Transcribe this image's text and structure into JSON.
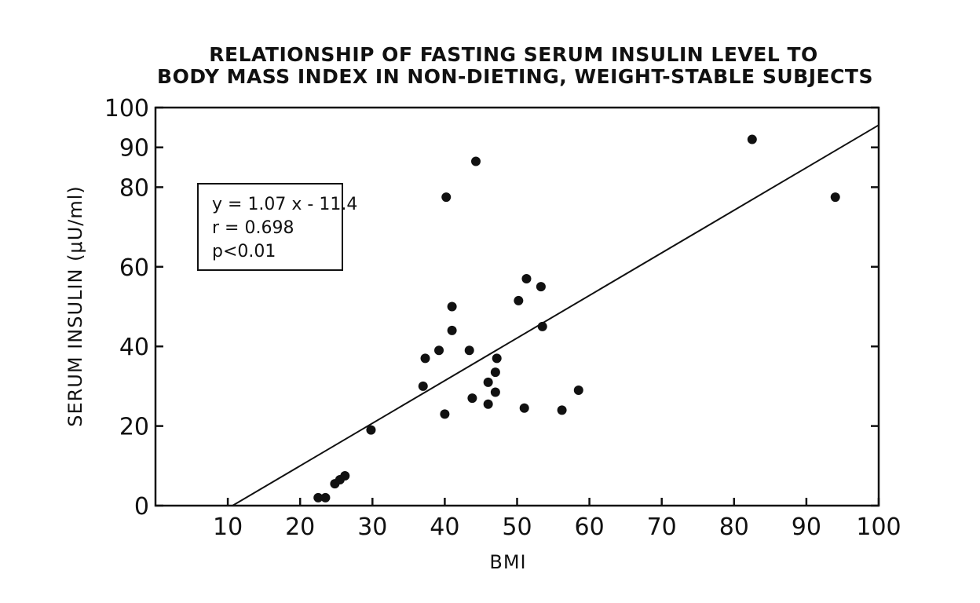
{
  "chart_data": {
    "type": "scatter",
    "title_lines": [
      "RELATIONSHIP OF FASTING SERUM INSULIN LEVEL TO",
      "BODY MASS INDEX IN NON-DIETING, WEIGHT-STABLE SUBJECTS"
    ],
    "xlabel": "BMI",
    "ylabel": "SERUM INSULIN (μU/ml)",
    "xlim": [
      0,
      100
    ],
    "ylim": [
      0,
      100
    ],
    "x_ticks": [
      10,
      20,
      30,
      40,
      50,
      60,
      70,
      80,
      90,
      100
    ],
    "y_ticks": [
      0,
      20,
      40,
      60,
      80,
      90,
      100
    ],
    "grid": false,
    "points": [
      {
        "x": 22.5,
        "y": 2
      },
      {
        "x": 23.5,
        "y": 2
      },
      {
        "x": 24.8,
        "y": 5.5
      },
      {
        "x": 25.5,
        "y": 6.5
      },
      {
        "x": 26.2,
        "y": 7.5
      },
      {
        "x": 29.8,
        "y": 19
      },
      {
        "x": 37.0,
        "y": 30
      },
      {
        "x": 37.3,
        "y": 37
      },
      {
        "x": 39.2,
        "y": 39
      },
      {
        "x": 40.0,
        "y": 23
      },
      {
        "x": 40.2,
        "y": 77.5
      },
      {
        "x": 41.0,
        "y": 44
      },
      {
        "x": 41.0,
        "y": 50
      },
      {
        "x": 43.4,
        "y": 39
      },
      {
        "x": 43.8,
        "y": 27
      },
      {
        "x": 44.3,
        "y": 86.5
      },
      {
        "x": 46.0,
        "y": 31
      },
      {
        "x": 46.0,
        "y": 25.5
      },
      {
        "x": 47.0,
        "y": 33.5
      },
      {
        "x": 47.0,
        "y": 28.5
      },
      {
        "x": 47.2,
        "y": 37
      },
      {
        "x": 50.2,
        "y": 51.5
      },
      {
        "x": 51.0,
        "y": 24.5
      },
      {
        "x": 51.3,
        "y": 57
      },
      {
        "x": 53.3,
        "y": 55
      },
      {
        "x": 53.5,
        "y": 45
      },
      {
        "x": 56.2,
        "y": 24
      },
      {
        "x": 58.5,
        "y": 29
      },
      {
        "x": 82.5,
        "y": 92
      },
      {
        "x": 94.0,
        "y": 77.5
      }
    ],
    "regression": {
      "slope": 1.07,
      "intercept": -11.4,
      "x_range": [
        10.65,
        100
      ]
    },
    "annotation_lines": [
      "y = 1.07 x - 11.4",
      "r = 0.698",
      "p<0.01"
    ]
  }
}
